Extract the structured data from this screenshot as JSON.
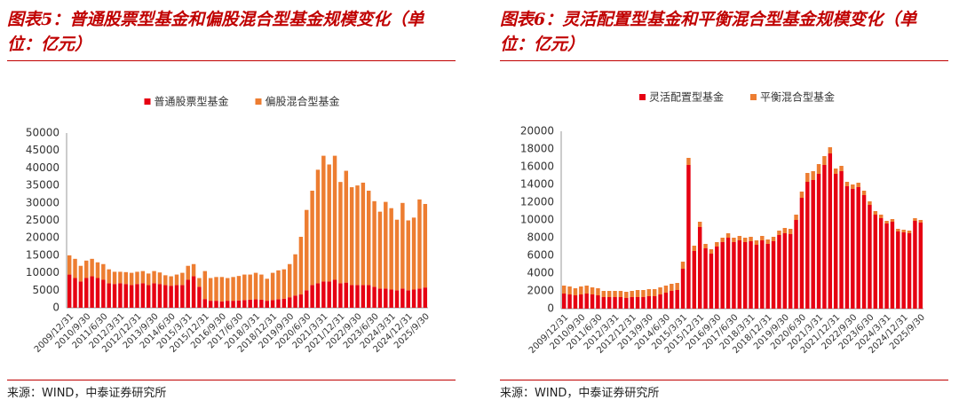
{
  "chart_data": [
    {
      "type": "bar",
      "stacked": true,
      "title": "图表5：普通股票型基金和偏股混合型基金规模变化（单位：亿元）",
      "source": "来源：WIND，中泰证券研究所",
      "categories": [
        "2009/12/31",
        null,
        null,
        "2010/9/30",
        null,
        null,
        "2011/6/30",
        null,
        null,
        "2012/3/31",
        null,
        null,
        "2012/12/31",
        null,
        null,
        "2013/9/30",
        null,
        null,
        "2014/6/30",
        null,
        null,
        "2015/3/31",
        null,
        null,
        "2015/12/31",
        null,
        null,
        "2016/9/30",
        null,
        null,
        "2017/6/30",
        null,
        null,
        "2018/3/31",
        null,
        null,
        "2018/12/31",
        null,
        null,
        "2019/9/30",
        null,
        null,
        "2020/6/30",
        null,
        null,
        "2021/3/31",
        null,
        null,
        "2021/12/31",
        null,
        null,
        "2022/9/30",
        null,
        null,
        "2023/6/30",
        null,
        null,
        "2024/3/31",
        null,
        null,
        "2024/12/31",
        null,
        null,
        "2025/9/30"
      ],
      "series": [
        {
          "name": "普通股票型基金",
          "color": "#e60012",
          "values": [
            9500,
            8500,
            7500,
            8500,
            9000,
            8500,
            8000,
            7000,
            6800,
            7000,
            6800,
            6500,
            6800,
            7000,
            6500,
            7000,
            6800,
            6500,
            6300,
            6500,
            6500,
            8000,
            9000,
            6000,
            2500,
            2000,
            2000,
            1800,
            2000,
            2000,
            2100,
            2200,
            2300,
            2400,
            2300,
            2000,
            2200,
            2400,
            2600,
            3000,
            3500,
            3800,
            5000,
            6500,
            7000,
            7500,
            7500,
            8000,
            7000,
            7200,
            6500,
            6500,
            6500,
            6500,
            6000,
            5500,
            5500,
            5200,
            5000,
            5500,
            5000,
            5200,
            5500,
            5800
          ]
        },
        {
          "name": "偏股混合型基金",
          "color": "#ed7d31",
          "values": [
            5500,
            5500,
            4500,
            5000,
            5000,
            4500,
            4500,
            4000,
            3500,
            3300,
            3400,
            3500,
            3500,
            3500,
            3300,
            3500,
            3300,
            2800,
            2700,
            3000,
            3500,
            4000,
            3500,
            2500,
            8000,
            6500,
            6800,
            7000,
            6500,
            6800,
            7000,
            7300,
            7200,
            7600,
            7200,
            6300,
            7800,
            8300,
            8400,
            9500,
            11800,
            16500,
            23000,
            27000,
            32500,
            36000,
            33500,
            35500,
            29000,
            32000,
            28000,
            28500,
            29300,
            27000,
            24500,
            22000,
            24800,
            23300,
            20200,
            24500,
            20000,
            20600,
            25500,
            23900
          ]
        }
      ],
      "ylim": [
        0,
        50000
      ],
      "yticks": [
        0,
        5000,
        10000,
        15000,
        20000,
        25000,
        30000,
        35000,
        40000,
        45000,
        50000
      ]
    },
    {
      "type": "bar",
      "stacked": true,
      "title": "图表6：灵活配置型基金和平衡混合型基金规模变化（单位：亿元）",
      "source": "来源：WIND，中泰证券研究所",
      "categories": [
        "2009/12/31",
        null,
        null,
        "2010/9/30",
        null,
        null,
        "2011/6/30",
        null,
        null,
        "2012/3/31",
        null,
        null,
        "2012/12/31",
        null,
        null,
        "2013/9/30",
        null,
        null,
        "2014/6/30",
        null,
        null,
        "2015/3/31",
        null,
        null,
        "2015/12/31",
        null,
        null,
        "2016/9/30",
        null,
        null,
        "2017/6/30",
        null,
        null,
        "2018/3/31",
        null,
        null,
        "2018/12/31",
        null,
        null,
        "2019/9/30",
        null,
        null,
        "2020/6/30",
        null,
        null,
        "2021/3/31",
        null,
        null,
        "2021/12/31",
        null,
        null,
        "2022/9/30",
        null,
        null,
        "2023/6/30",
        null,
        null,
        "2024/3/31",
        null,
        null,
        "2024/12/31",
        null,
        null,
        "2025/9/30"
      ],
      "series": [
        {
          "name": "灵活配置型基金",
          "color": "#e60012",
          "values": [
            1700,
            1600,
            1500,
            1600,
            1700,
            1600,
            1500,
            1300,
            1300,
            1300,
            1300,
            1200,
            1300,
            1300,
            1300,
            1400,
            1400,
            1600,
            1800,
            2000,
            2100,
            4500,
            16200,
            6500,
            9200,
            6800,
            6200,
            7000,
            7500,
            8000,
            7500,
            7700,
            7500,
            7600,
            7200,
            7700,
            7300,
            7600,
            8300,
            8500,
            8400,
            10000,
            12500,
            14300,
            14500,
            15200,
            16200,
            17500,
            15200,
            15500,
            13800,
            13500,
            13700,
            12800,
            11700,
            10600,
            10200,
            9600,
            9800,
            8700,
            8600,
            8500,
            9900,
            9700
          ]
        },
        {
          "name": "平衡混合型基金",
          "color": "#ed7d31",
          "values": [
            900,
            900,
            800,
            900,
            900,
            800,
            800,
            700,
            700,
            700,
            700,
            700,
            700,
            800,
            800,
            800,
            800,
            800,
            800,
            800,
            800,
            800,
            800,
            600,
            600,
            500,
            500,
            500,
            500,
            500,
            500,
            500,
            500,
            500,
            500,
            500,
            500,
            500,
            500,
            600,
            600,
            600,
            700,
            1000,
            1000,
            1100,
            1000,
            700,
            600,
            600,
            500,
            500,
            500,
            500,
            400,
            400,
            400,
            300,
            300,
            300,
            300,
            300,
            300,
            300
          ]
        }
      ],
      "ylim": [
        0,
        20000
      ],
      "yticks": [
        0,
        2000,
        4000,
        6000,
        8000,
        10000,
        12000,
        14000,
        16000,
        18000,
        20000
      ]
    }
  ]
}
